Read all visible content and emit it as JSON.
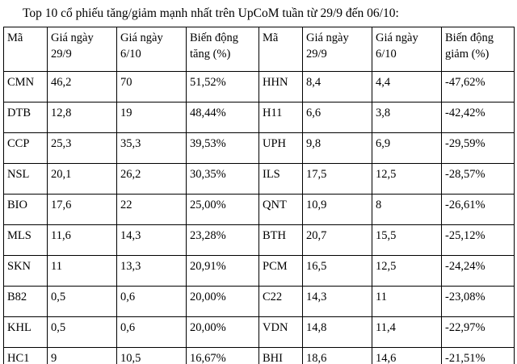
{
  "title": "Top 10 cổ phiếu tăng/giảm mạnh nhất trên UpCoM tuần từ 29/9 đến 06/10:",
  "table": {
    "headers": [
      "Mã",
      "Giá ngày 29/9",
      "Giá ngày 6/10",
      "Biến động tăng (%)",
      "Mã",
      "Giá ngày 29/9",
      "Giá ngày 6/10",
      "Biến động giảm (%)"
    ],
    "rows": [
      [
        "CMN",
        "46,2",
        "70",
        "51,52%",
        "HHN",
        "8,4",
        "4,4",
        "-47,62%"
      ],
      [
        "DTB",
        "12,8",
        "19",
        "48,44%",
        "H11",
        "6,6",
        "3,8",
        "-42,42%"
      ],
      [
        "CCP",
        "25,3",
        "35,3",
        "39,53%",
        "UPH",
        "9,8",
        "6,9",
        "-29,59%"
      ],
      [
        "NSL",
        "20,1",
        "26,2",
        "30,35%",
        "ILS",
        "17,5",
        "12,5",
        "-28,57%"
      ],
      [
        "BIO",
        "17,6",
        "22",
        "25,00%",
        "QNT",
        "10,9",
        "8",
        "-26,61%"
      ],
      [
        "MLS",
        "11,6",
        "14,3",
        "23,28%",
        "BTH",
        "20,7",
        "15,5",
        "-25,12%"
      ],
      [
        "SKN",
        "11",
        "13,3",
        "20,91%",
        "PCM",
        "16,5",
        "12,5",
        "-24,24%"
      ],
      [
        "B82",
        "0,5",
        "0,6",
        "20,00%",
        "C22",
        "14,3",
        "11",
        "-23,08%"
      ],
      [
        "KHL",
        "0,5",
        "0,6",
        "20,00%",
        "VDN",
        "14,8",
        "11,4",
        "-22,97%"
      ],
      [
        "HC1",
        "9",
        "10,5",
        "16,67%",
        "BHI",
        "18,6",
        "14,6",
        "-21,51%"
      ]
    ]
  }
}
